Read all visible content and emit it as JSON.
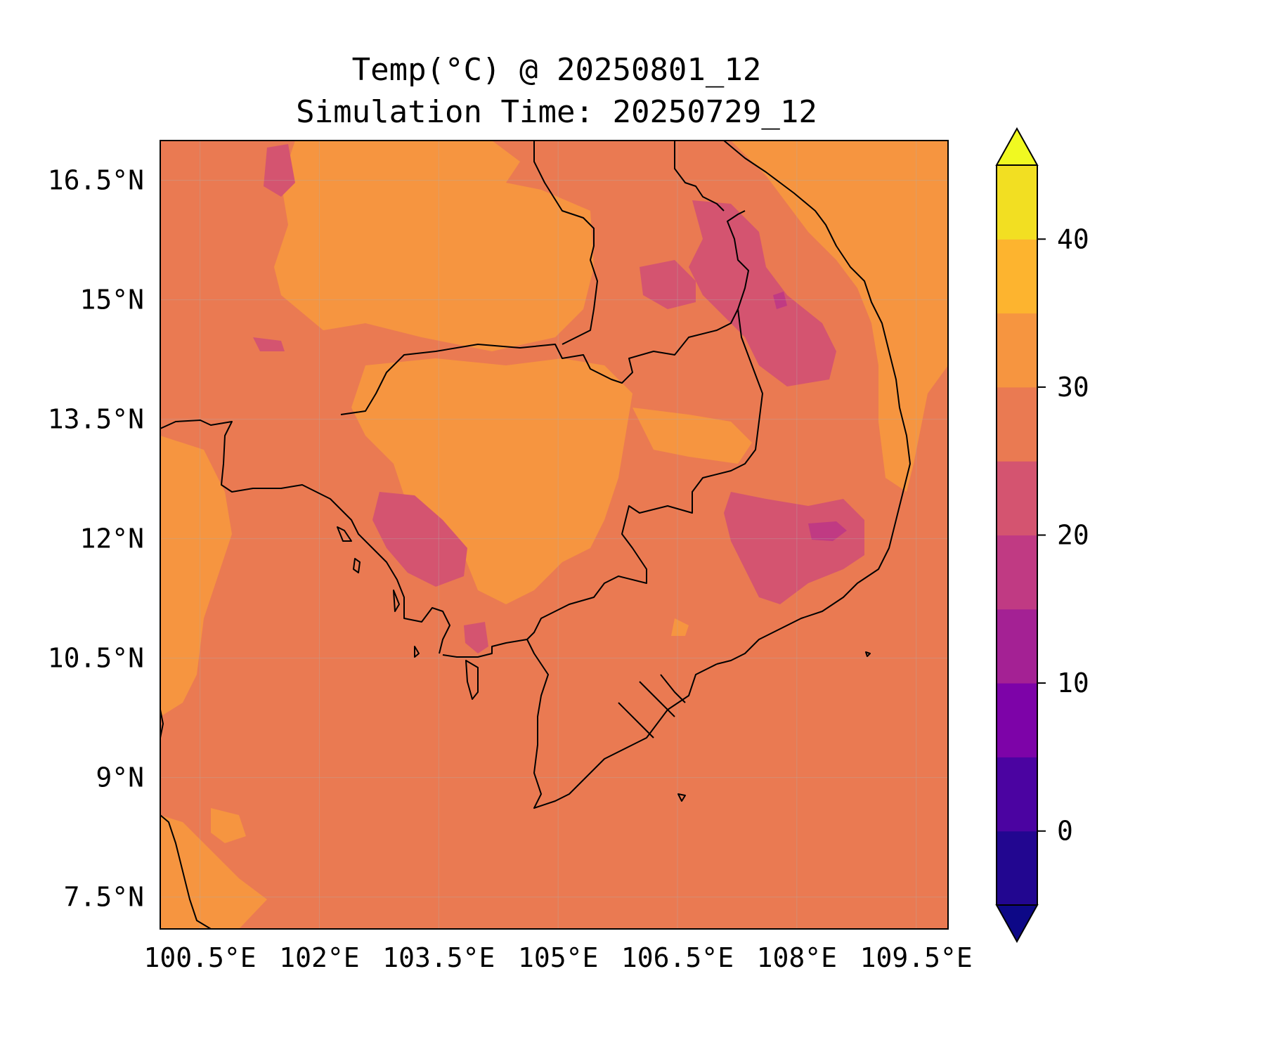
{
  "title": {
    "line1": "Temp(°C) @ 20250801_12",
    "line2": "Simulation Time: 20250729_12"
  },
  "map": {
    "extent": {
      "lon": [
        100.0,
        109.9
      ],
      "lat": [
        7.1,
        17.0
      ]
    },
    "lon_ticks": [
      100.5,
      102,
      103.5,
      105,
      106.5,
      108,
      109.5
    ],
    "lon_tick_labels": [
      "100.5°E",
      "102°E",
      "103.5°E",
      "105°E",
      "106.5°E",
      "108°E",
      "109.5°E"
    ],
    "lat_ticks": [
      16.5,
      15,
      13.5,
      12,
      10.5,
      9,
      7.5
    ],
    "lat_tick_labels": [
      "16.5°N",
      "15°N",
      "13.5°N",
      "12°N",
      "10.5°N",
      "9°N",
      "7.5°N"
    ],
    "gridlines": true
  },
  "colorbar": {
    "levels": [
      -5,
      0,
      5,
      10,
      15,
      20,
      25,
      30,
      35,
      40,
      45
    ],
    "colors": [
      "#220690",
      "#4b03a1",
      "#7d03a8",
      "#a42194",
      "#c03a83",
      "#d45470",
      "#ea7a52",
      "#f69540",
      "#fdb42f",
      "#f2df22"
    ],
    "under_color": "#0d0887",
    "over_color": "#f0f921",
    "ticks": [
      0,
      10,
      20,
      30,
      40
    ],
    "tick_labels": [
      "0",
      "10",
      "20",
      "30",
      "40"
    ],
    "extend": "both"
  },
  "field_summary": {
    "dominant_band": "25–30",
    "land_interior_band": "30–35",
    "highland_band": "20–25",
    "min_band": "15–20"
  }
}
